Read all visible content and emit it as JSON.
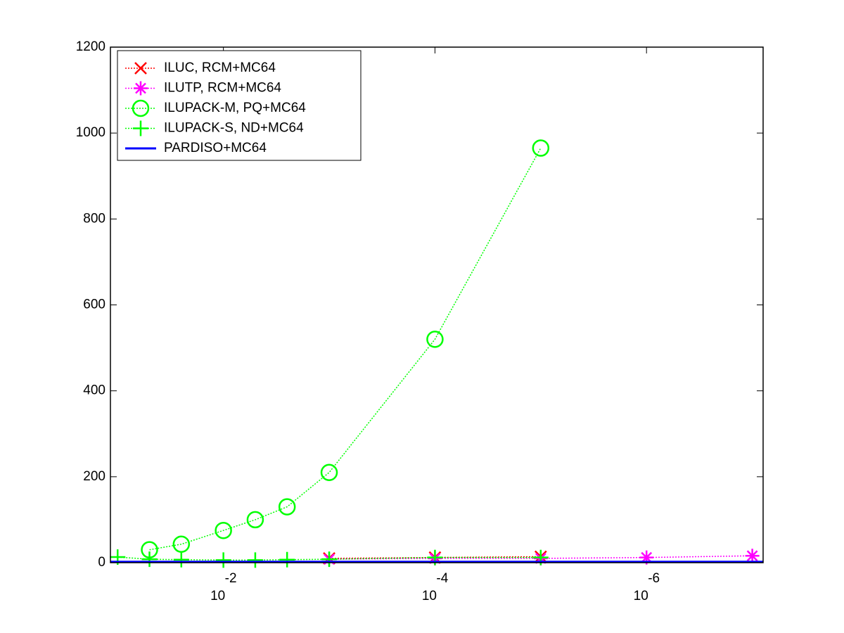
{
  "chart_data": {
    "type": "line",
    "xscale": "log",
    "xreversed": true,
    "xlim": [
      0.117,
      7.9e-08
    ],
    "ylim": [
      0,
      1200
    ],
    "xticks": [
      {
        "value": 0.01,
        "label": "10",
        "exponent": "-2"
      },
      {
        "value": 0.0001,
        "label": "10",
        "exponent": "-4"
      },
      {
        "value": 1e-06,
        "label": "10",
        "exponent": "-6"
      }
    ],
    "yticks": [
      0,
      200,
      400,
      600,
      800,
      1000,
      1200
    ],
    "legend": "upper left",
    "series": [
      {
        "name": "ILUC, RCM+MC64",
        "color": "#ff0000",
        "marker": "x",
        "linestyle": "dotted",
        "x": [
          0.001,
          0.0001,
          1e-05
        ],
        "values": [
          10,
          12,
          14
        ]
      },
      {
        "name": "ILUTP, RCM+MC64",
        "color": "#ff00ff",
        "marker": "*",
        "linestyle": "dotted",
        "x": [
          0.001,
          0.0001,
          1e-05,
          1e-06,
          1e-07
        ],
        "values": [
          8,
          10,
          10,
          12,
          16
        ]
      },
      {
        "name": "ILUPACK-M, PQ+MC64",
        "color": "#00ff00",
        "marker": "o",
        "linestyle": "dotted",
        "x": [
          0.05,
          0.025,
          0.01,
          0.005,
          0.0025,
          0.001,
          0.0001,
          1e-05
        ],
        "values": [
          30,
          43,
          75,
          100,
          130,
          210,
          520,
          965
        ]
      },
      {
        "name": "ILUPACK-S, ND+MC64",
        "color": "#00ff00",
        "marker": "+",
        "linestyle": "dotted",
        "x": [
          0.1,
          0.05,
          0.025,
          0.01,
          0.005,
          0.0025,
          0.001,
          0.0001,
          1e-05
        ],
        "values": [
          13,
          8,
          7,
          6,
          6,
          7,
          8,
          12,
          12
        ]
      },
      {
        "name": "PARDISO+MC64",
        "color": "#0000ff",
        "marker": "none",
        "linestyle": "solid",
        "x": [
          0.117,
          7.9e-08
        ],
        "values": [
          2,
          2
        ]
      }
    ]
  }
}
